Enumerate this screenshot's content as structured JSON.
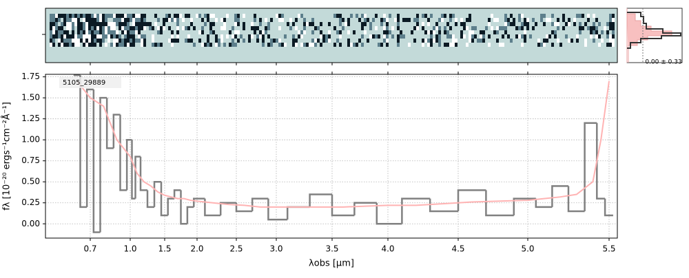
{
  "chart_data": {
    "type": "step",
    "label": "5105_29889",
    "xlabel": "λobs [μm]",
    "ylabel": "fλ [10⁻²⁰ ergs⁻¹cm⁻²Å⁻¹]",
    "annotation": "0.00 ± 0.33",
    "xlim": [
      0.55,
      5.53
    ],
    "xticks": [
      0.7,
      {
        "value": 1.0,
        "label": "1.0"
      },
      1.5,
      {
        "value": 2.0,
        "label": "2.0"
      },
      2.5,
      {
        "value": 3.0,
        "label": "3.0"
      },
      3.5,
      {
        "value": 4.0,
        "label": "4.0"
      },
      4.5,
      {
        "value": 5.0,
        "label": "5.0"
      },
      5.5
    ],
    "ylim": [
      -0.17,
      1.78
    ],
    "yticks": [
      {
        "value": 0,
        "label": "0.00"
      },
      0.25,
      {
        "value": 0.5,
        "label": "0.50"
      },
      0.75,
      {
        "value": 1,
        "label": "1.00"
      },
      1.25,
      {
        "value": 1.5,
        "label": "1.50"
      },
      1.75
    ],
    "grid": true,
    "x": [
      0.6,
      0.65,
      0.7,
      0.75,
      0.8,
      0.85,
      0.9,
      0.95,
      1.0,
      1.05,
      1.1,
      1.2,
      1.3,
      1.4,
      1.5,
      1.6,
      1.7,
      1.8,
      1.9,
      2.0,
      2.2,
      2.4,
      2.6,
      2.8,
      3.0,
      3.2,
      3.4,
      3.6,
      3.8,
      4.0,
      4.2,
      4.4,
      4.6,
      4.8,
      5.0,
      5.1,
      5.2,
      5.3,
      5.4,
      5.45,
      5.5
    ],
    "series": [
      {
        "color": "#808080",
        "values": [
          1.77,
          0.2,
          1.6,
          -0.1,
          1.5,
          0.9,
          1.3,
          0.4,
          1.0,
          0.3,
          0.8,
          0.4,
          0.2,
          0.5,
          0.1,
          0.3,
          0.4,
          0.0,
          0.2,
          0.3,
          0.1,
          0.25,
          0.15,
          0.3,
          0.05,
          0.2,
          0.35,
          0.1,
          0.25,
          0.0,
          0.3,
          0.15,
          0.4,
          0.1,
          0.3,
          0.2,
          0.45,
          0.15,
          1.2,
          0.3,
          0.1
        ]
      },
      {
        "color": "#ffb3b3",
        "values": [
          1.7,
          1.6,
          1.5,
          1.45,
          1.4,
          1.2,
          1.0,
          0.9,
          0.8,
          0.7,
          0.6,
          0.5,
          0.45,
          0.38,
          0.34,
          0.32,
          0.3,
          0.3,
          0.28,
          0.27,
          0.25,
          0.23,
          0.22,
          0.2,
          0.2,
          0.2,
          0.2,
          0.2,
          0.21,
          0.22,
          0.22,
          0.24,
          0.26,
          0.27,
          0.28,
          0.3,
          0.32,
          0.35,
          0.5,
          1.0,
          1.7
        ]
      }
    ]
  }
}
